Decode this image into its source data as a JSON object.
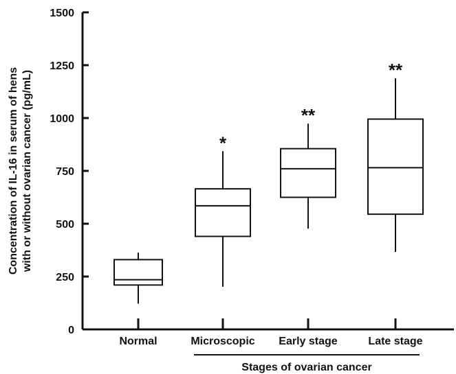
{
  "chart_data": {
    "type": "box",
    "ylabel_lines": [
      "Concentration of IL-16 in serum of hens",
      "with or without ovarian cancer (pg/mL)"
    ],
    "group_label": "Stages of ovarian cancer",
    "ylim": [
      0,
      1500
    ],
    "yticks": [
      0,
      250,
      500,
      750,
      1000,
      1250,
      1500
    ],
    "categories": [
      "Normal",
      "Microscopic",
      "Early stage",
      "Late stage"
    ],
    "boxes": [
      {
        "category": "Normal",
        "min": 125,
        "q1": 210,
        "median": 235,
        "q3": 330,
        "max": 360,
        "significance": ""
      },
      {
        "category": "Microscopic",
        "min": 205,
        "q1": 440,
        "median": 585,
        "q3": 665,
        "max": 840,
        "significance": "*"
      },
      {
        "category": "Early stage",
        "min": 480,
        "q1": 625,
        "median": 760,
        "q3": 855,
        "max": 970,
        "significance": "**"
      },
      {
        "category": "Late stage",
        "min": 370,
        "q1": 545,
        "median": 765,
        "q3": 995,
        "max": 1185,
        "significance": "**"
      }
    ],
    "grid": false,
    "colors": {
      "line": "#111111",
      "fill": "#ffffff"
    }
  }
}
